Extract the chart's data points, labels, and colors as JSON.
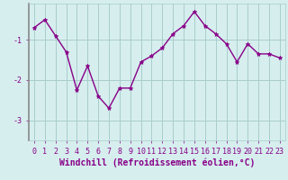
{
  "x": [
    0,
    1,
    2,
    3,
    4,
    5,
    6,
    7,
    8,
    9,
    10,
    11,
    12,
    13,
    14,
    15,
    16,
    17,
    18,
    19,
    20,
    21,
    22,
    23
  ],
  "y": [
    -0.7,
    -0.5,
    -0.9,
    -1.3,
    -2.25,
    -1.65,
    -2.4,
    -2.7,
    -2.2,
    -2.2,
    -1.55,
    -1.4,
    -1.2,
    -0.85,
    -0.65,
    -0.3,
    -0.65,
    -0.85,
    -1.1,
    -1.55,
    -1.1,
    -1.35,
    -1.35,
    -1.45
  ],
  "line_color": "#880088",
  "marker": "*",
  "bg_color": "#d6eeee",
  "grid_color": "#aacccc",
  "xlabel": "Windchill (Refroidissement éolien,°C)",
  "ylim": [
    -3.5,
    -0.1
  ],
  "xlim": [
    -0.5,
    23.5
  ],
  "yticks": [
    -3,
    -2,
    -1
  ],
  "ytick_labels": [
    "-3",
    "-2",
    "-1"
  ],
  "xtick_labels": [
    "0",
    "1",
    "2",
    "3",
    "4",
    "5",
    "6",
    "7",
    "8",
    "9",
    "10",
    "11",
    "12",
    "13",
    "14",
    "15",
    "16",
    "17",
    "18",
    "19",
    "20",
    "21",
    "22",
    "23"
  ],
  "tick_fontsize": 6,
  "xlabel_fontsize": 7,
  "line_width": 1.0,
  "marker_size": 3.5,
  "spine_color": "#888888"
}
